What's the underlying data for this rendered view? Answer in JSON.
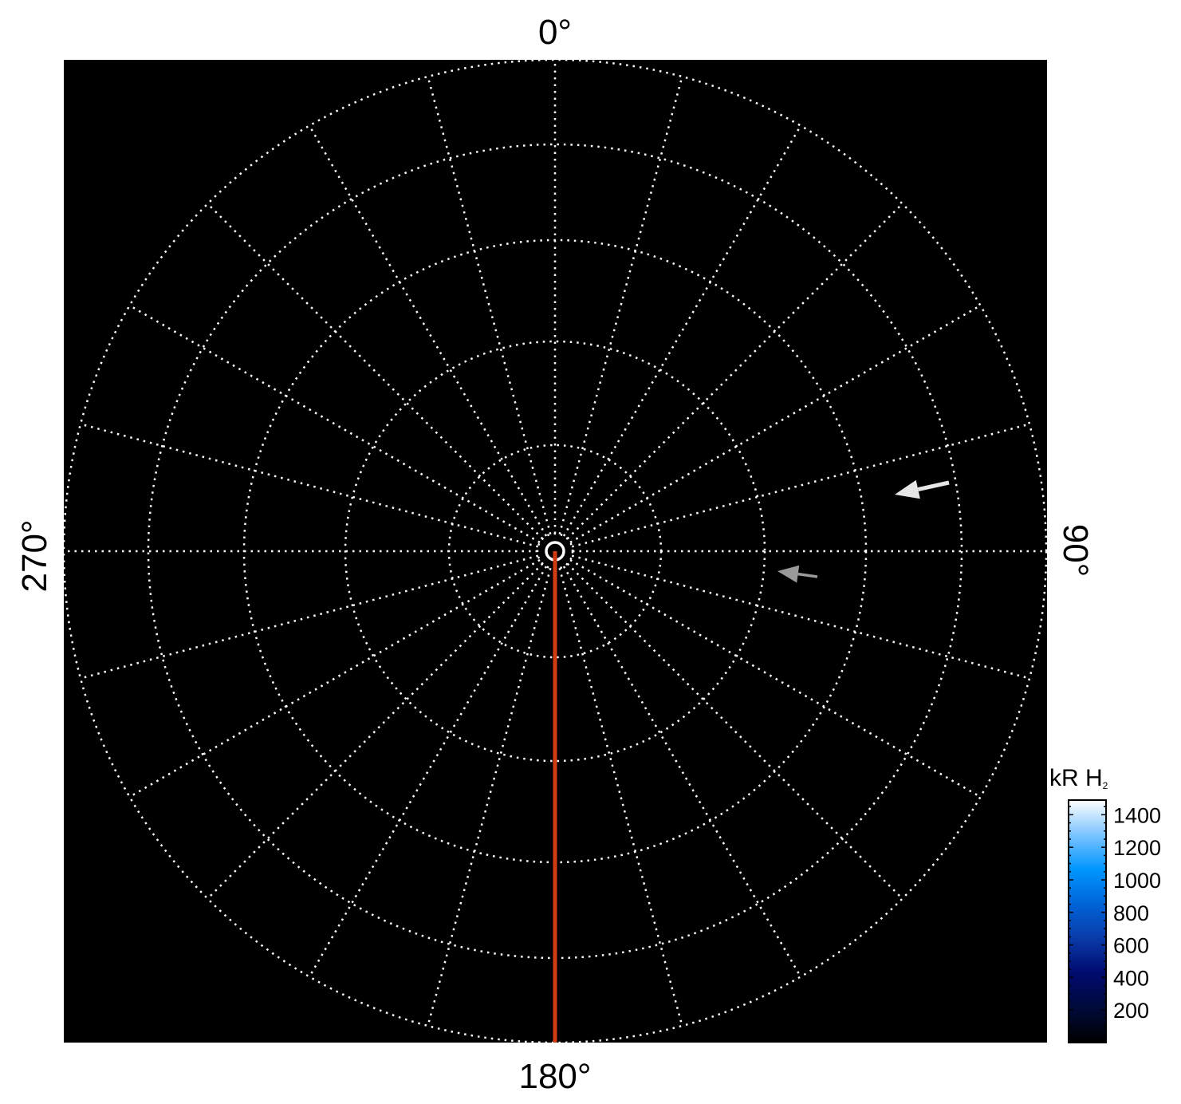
{
  "chart_data": {
    "type": "polar-projection",
    "background_color": "#000000",
    "grid": true,
    "grid_color": "#ffffff",
    "grid_style": "dotted",
    "longitude_labels": [
      {
        "angle": 0,
        "text": "0°"
      },
      {
        "angle": 90,
        "text": "90°"
      },
      {
        "angle": 180,
        "text": "180°"
      },
      {
        "angle": 270,
        "text": "270°"
      }
    ],
    "meridian_spacing_deg": 15,
    "latitude_circles": 6,
    "reference_line": {
      "longitude": 180,
      "color": "#d23c12"
    },
    "annotations": [
      {
        "type": "arrow",
        "color": "#e6e6e6",
        "longitude": 77
      },
      {
        "type": "arrow",
        "color": "#9a9a9a",
        "longitude": 97
      }
    ],
    "colorbar": {
      "label": "kR H",
      "label_subscript": "2",
      "range": [
        0,
        1490
      ],
      "ticks": [
        "200",
        "400",
        "600",
        "800",
        "1000",
        "1200",
        "1400"
      ],
      "colormap": [
        "#000000",
        "#000a3a",
        "#000a6e",
        "#0a3aa8",
        "#0064d8",
        "#0096ff",
        "#7cc4ff",
        "#ffffff"
      ],
      "placement": "bottom-right"
    }
  }
}
